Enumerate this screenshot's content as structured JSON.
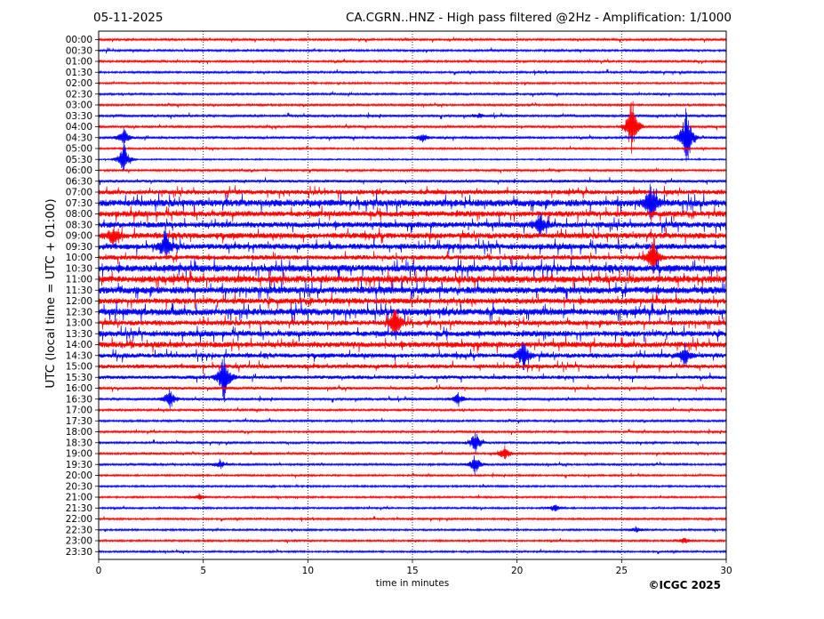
{
  "header": {
    "date": "05-11-2025",
    "title": "CA.CGRN..HNZ - High pass filtered @2Hz - Amplification: 1/1000"
  },
  "footer": {
    "copyright": "©ICGC 2025"
  },
  "colors": {
    "odd_trace": "#ff0000",
    "even_trace": "#0000ff",
    "grid": "#000000"
  },
  "chart_data": {
    "type": "line",
    "title": "CA.CGRN..HNZ - High pass filtered @2Hz - Amplification: 1/1000",
    "xlabel": "time in minutes",
    "ylabel": "UTC (local time = UTC + 01:00)",
    "xlim": [
      0,
      30
    ],
    "x_ticks": [
      0,
      5,
      10,
      15,
      20,
      25,
      30
    ],
    "vertical_grid": "dotted at 5-minute ticks",
    "rows": [
      "00:00",
      "00:30",
      "01:00",
      "01:30",
      "02:00",
      "02:30",
      "03:00",
      "03:30",
      "04:00",
      "04:30",
      "05:00",
      "05:30",
      "06:00",
      "06:30",
      "07:00",
      "07:30",
      "08:00",
      "08:30",
      "09:00",
      "09:30",
      "10:00",
      "10:30",
      "11:00",
      "11:30",
      "12:00",
      "12:30",
      "13:00",
      "13:30",
      "14:00",
      "14:30",
      "15:00",
      "15:30",
      "16:00",
      "16:30",
      "17:00",
      "17:30",
      "18:00",
      "18:30",
      "19:00",
      "19:30",
      "20:00",
      "20:30",
      "21:00",
      "21:30",
      "22:00",
      "22:30",
      "23:00",
      "23:30"
    ],
    "row_colors": "alternating red/blue starting with red at 00:00",
    "noise_level": [
      0.9,
      0.9,
      0.9,
      0.9,
      0.8,
      0.9,
      0.9,
      1.0,
      1.0,
      1.0,
      0.8,
      0.6,
      0.9,
      1.2,
      2.0,
      3.0,
      2.5,
      2.5,
      2.5,
      2.5,
      2.0,
      3.0,
      3.0,
      3.0,
      2.5,
      3.0,
      2.2,
      2.5,
      2.5,
      2.0,
      1.8,
      1.6,
      1.2,
      1.0,
      0.9,
      0.9,
      0.9,
      0.9,
      0.9,
      0.9,
      0.8,
      0.8,
      0.8,
      0.8,
      0.8,
      0.8,
      0.8,
      0.8
    ],
    "events": [
      {
        "row": "03:30",
        "minute": 18.2,
        "amplitude": 3
      },
      {
        "row": "04:30",
        "minute": 15.5,
        "amplitude": 6
      },
      {
        "row": "04:30",
        "minute": 1.2,
        "amplitude": 12
      },
      {
        "row": "05:30",
        "minute": 1.2,
        "amplitude": 22
      },
      {
        "row": "04:00",
        "minute": 25.5,
        "amplitude": 40
      },
      {
        "row": "04:30",
        "minute": 28.1,
        "amplitude": 45
      },
      {
        "row": "07:30",
        "minute": 26.4,
        "amplitude": 30
      },
      {
        "row": "08:30",
        "minute": 21.1,
        "amplitude": 15
      },
      {
        "row": "09:30",
        "minute": 3.2,
        "amplitude": 18
      },
      {
        "row": "09:00",
        "minute": 0.7,
        "amplitude": 12
      },
      {
        "row": "10:00",
        "minute": 26.5,
        "amplitude": 30
      },
      {
        "row": "13:00",
        "minute": 14.2,
        "amplitude": 22
      },
      {
        "row": "14:30",
        "minute": 20.3,
        "amplitude": 20
      },
      {
        "row": "14:30",
        "minute": 28.0,
        "amplitude": 14
      },
      {
        "row": "15:30",
        "minute": 6.0,
        "amplitude": 35
      },
      {
        "row": "16:30",
        "minute": 3.4,
        "amplitude": 14
      },
      {
        "row": "16:30",
        "minute": 17.2,
        "amplitude": 8
      },
      {
        "row": "18:30",
        "minute": 18.0,
        "amplitude": 16
      },
      {
        "row": "19:00",
        "minute": 19.4,
        "amplitude": 10
      },
      {
        "row": "19:30",
        "minute": 18.0,
        "amplitude": 12
      },
      {
        "row": "19:30",
        "minute": 5.8,
        "amplitude": 6
      },
      {
        "row": "21:00",
        "minute": 4.8,
        "amplitude": 4
      },
      {
        "row": "21:30",
        "minute": 21.8,
        "amplitude": 5
      },
      {
        "row": "22:30",
        "minute": 25.7,
        "amplitude": 4
      },
      {
        "row": "23:00",
        "minute": 28.0,
        "amplitude": 4
      }
    ]
  }
}
